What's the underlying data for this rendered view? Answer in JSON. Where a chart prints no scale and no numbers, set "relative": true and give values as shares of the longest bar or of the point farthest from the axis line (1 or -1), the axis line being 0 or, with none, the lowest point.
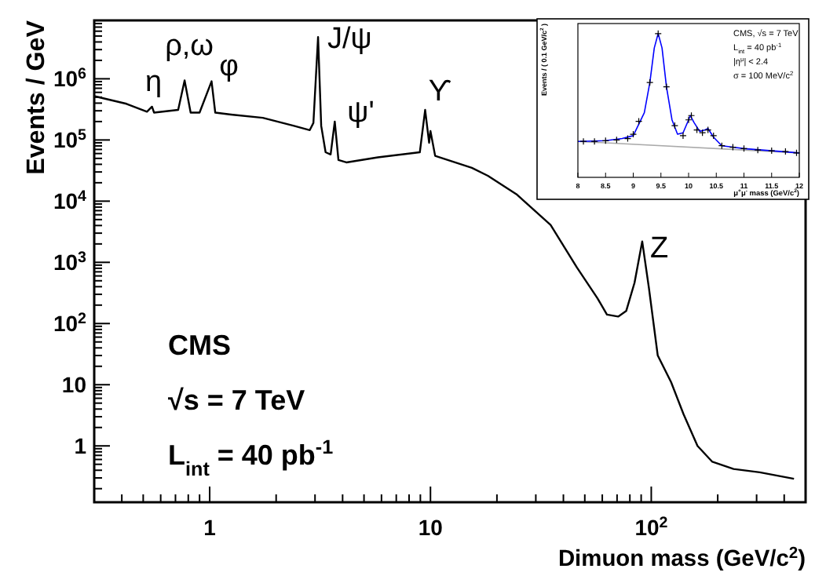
{
  "chart_data": [
    {
      "type": "line",
      "xlabel": "Dimuon mass (GeV/c$^{2}$)",
      "ylabel": "Events / GeV",
      "log": "xy",
      "xlim": [
        0.3,
        500
      ],
      "ylim": [
        0.12,
        9000000
      ],
      "xticks": [
        {
          "value": 0.4,
          "label": null
        },
        {
          "value": 0.5,
          "label": null
        },
        {
          "value": 0.6,
          "label": null
        },
        {
          "value": 0.7,
          "label": null
        },
        {
          "value": 0.8,
          "label": null
        },
        {
          "value": 0.9,
          "label": null
        },
        1,
        {
          "value": 2,
          "label": null
        },
        {
          "value": 3,
          "label": null
        },
        {
          "value": 4,
          "label": null
        },
        {
          "value": 5,
          "label": null
        },
        {
          "value": 6,
          "label": null
        },
        {
          "value": 7,
          "label": null
        },
        {
          "value": 8,
          "label": null
        },
        {
          "value": 9,
          "label": null
        },
        10,
        {
          "value": 20,
          "label": null
        },
        {
          "value": 30,
          "label": null
        },
        {
          "value": 40,
          "label": null
        },
        {
          "value": 50,
          "label": null
        },
        {
          "value": 60,
          "label": null
        },
        {
          "value": 70,
          "label": null
        },
        {
          "value": 80,
          "label": null
        },
        {
          "value": 90,
          "label": null
        },
        {
          "value": 100,
          "label": "10$^{2}$"
        },
        {
          "value": 200,
          "label": null
        },
        {
          "value": 300,
          "label": null
        },
        {
          "value": 400,
          "label": null
        },
        {
          "value": 500,
          "label": null
        }
      ],
      "yticks": [
        {
          "value": 0.2,
          "label": null
        },
        {
          "value": 0.3,
          "label": null
        },
        {
          "value": 0.4,
          "label": null
        },
        {
          "value": 0.5,
          "label": null
        },
        {
          "value": 0.6,
          "label": null
        },
        {
          "value": 0.7,
          "label": null
        },
        {
          "value": 0.8,
          "label": null
        },
        {
          "value": 0.9,
          "label": null
        },
        1,
        {
          "value": 2,
          "label": null
        },
        {
          "value": 3,
          "label": null
        },
        {
          "value": 4,
          "label": null
        },
        {
          "value": 5,
          "label": null
        },
        {
          "value": 6,
          "label": null
        },
        {
          "value": 7,
          "label": null
        },
        {
          "value": 8,
          "label": null
        },
        {
          "value": 9,
          "label": null
        },
        10,
        {
          "value": 20,
          "label": null
        },
        {
          "value": 30,
          "label": null
        },
        {
          "value": 40,
          "label": null
        },
        {
          "value": 50,
          "label": null
        },
        {
          "value": 60,
          "label": null
        },
        {
          "value": 70,
          "label": null
        },
        {
          "value": 80,
          "label": null
        },
        {
          "value": 90,
          "label": null
        },
        {
          "value": 100,
          "label": "10$^{2}$"
        },
        {
          "value": 200,
          "label": null
        },
        {
          "value": 300,
          "label": null
        },
        {
          "value": 400,
          "label": null
        },
        {
          "value": 500,
          "label": null
        },
        {
          "value": 600,
          "label": null
        },
        {
          "value": 700,
          "label": null
        },
        {
          "value": 800,
          "label": null
        },
        {
          "value": 900,
          "label": null
        },
        {
          "value": 1000,
          "label": "10$^{3}$"
        },
        {
          "value": 2000,
          "label": null
        },
        {
          "value": 3000,
          "label": null
        },
        {
          "value": 4000,
          "label": null
        },
        {
          "value": 5000,
          "label": null
        },
        {
          "value": 6000,
          "label": null
        },
        {
          "value": 7000,
          "label": null
        },
        {
          "value": 8000,
          "label": null
        },
        {
          "value": 9000,
          "label": null
        },
        {
          "value": 10000,
          "label": "10$^{4}$"
        },
        {
          "value": 20000,
          "label": null
        },
        {
          "value": 30000,
          "label": null
        },
        {
          "value": 40000,
          "label": null
        },
        {
          "value": 50000,
          "label": null
        },
        {
          "value": 60000,
          "label": null
        },
        {
          "value": 70000,
          "label": null
        },
        {
          "value": 80000,
          "label": null
        },
        {
          "value": 90000,
          "label": null
        },
        {
          "value": 100000,
          "label": "10$^{5}$"
        },
        {
          "value": 200000,
          "label": null
        },
        {
          "value": 300000,
          "label": null
        },
        {
          "value": 400000,
          "label": null
        },
        {
          "value": 500000,
          "label": null
        },
        {
          "value": 600000,
          "label": null
        },
        {
          "value": 700000,
          "label": null
        },
        {
          "value": 800000,
          "label": null
        },
        {
          "value": 900000,
          "label": null
        },
        {
          "value": 1000000,
          "label": "10$^{6}$"
        },
        {
          "value": 2000000,
          "label": null
        },
        {
          "value": 3000000,
          "label": null
        },
        {
          "value": 4000000,
          "label": null
        },
        {
          "value": 5000000,
          "label": null
        },
        {
          "value": 6000000,
          "label": null
        },
        {
          "value": 7000000,
          "label": null
        },
        {
          "value": 8000000,
          "label": null
        },
        {
          "value": 9000000,
          "label": null
        }
      ],
      "series": [
        {
          "color": "#000000",
          "x": [
            0.3,
            0.42,
            0.52,
            0.548,
            0.56,
            0.72,
            0.77,
            0.82,
            0.9,
            1.02,
            1.06,
            1.25,
            1.74,
            2.41,
            2.84,
            2.95,
            3.097,
            3.2,
            3.35,
            3.53,
            3.686,
            3.83,
            4.16,
            5.78,
            8.95,
            9.46,
            9.86,
            10.0,
            10.5,
            15.4,
            18.2,
            24.5,
            35,
            46,
            57,
            63,
            70.8,
            77,
            84,
            91,
            97.6,
            107,
            123,
            140,
            162,
            189,
            236,
            310,
            443
          ],
          "values": [
            520000,
            390000,
            290000,
            350000,
            280000,
            310000,
            940000,
            280000,
            280000,
            910000,
            280000,
            260000,
            230000,
            170000,
            145000,
            190000,
            4800000,
            170000,
            63000,
            58000,
            200000,
            47000,
            43000,
            52000,
            63000,
            310000,
            90000,
            140000,
            55000,
            35000,
            26000,
            13000,
            4100,
            830,
            260,
            140,
            130,
            160,
            465,
            2200,
            380,
            30,
            11,
            3.3,
            1.0,
            0.55,
            0.42,
            0.37,
            0.29
          ]
        }
      ],
      "annotations": [
        {
          "text": "η",
          "x": 0.548,
          "y": 350000
        },
        {
          "text": "ρ,ω",
          "x": 0.77,
          "y": 940000
        },
        {
          "text": "φ",
          "x": 1.02,
          "y": 910000
        },
        {
          "text": "J/ψ",
          "x": 3.097,
          "y": 4800000
        },
        {
          "text": "ψ'",
          "x": 3.686,
          "y": 200000
        },
        {
          "text": "ϒ",
          "x": 9.46,
          "y": 310000
        },
        {
          "text": "Z",
          "x": 91,
          "y": 2200
        },
        "CMS",
        "√s = 7 TeV",
        "L$_{int}$ = 40 pb$^{-1}$"
      ]
    },
    {
      "type": "line",
      "relative": true,
      "xlabel": "μ$^{+}$μ$^{-}$ mass (GeV/c$^{2}$)",
      "ylabel": "Events / ( 0.1 GeV/c$^{2}$ )",
      "xlim": [
        8,
        12
      ],
      "xticks": [
        8,
        8.5,
        9,
        9.5,
        10,
        10.5,
        11,
        11.5,
        12
      ],
      "series": [
        {
          "color": "#aaaaaa",
          "x": [
            8,
            12
          ],
          "values": [
            0.25,
            0.17
          ]
        },
        {
          "color": "#0000ff",
          "x": [
            8,
            8.5,
            8.8,
            9.0,
            9.2,
            9.3,
            9.38,
            9.45,
            9.52,
            9.6,
            9.7,
            9.8,
            9.9,
            10.0,
            10.03,
            10.1,
            10.2,
            10.3,
            10.35,
            10.45,
            10.6,
            10.8,
            11,
            11.5,
            12
          ],
          "values": [
            0.25,
            0.255,
            0.27,
            0.29,
            0.45,
            0.66,
            0.9,
            1.0,
            0.9,
            0.63,
            0.4,
            0.3,
            0.31,
            0.4,
            0.43,
            0.38,
            0.32,
            0.33,
            0.34,
            0.28,
            0.22,
            0.21,
            0.2,
            0.185,
            0.17
          ]
        },
        {
          "type": "scatter",
          "marker": "cross",
          "color": "#000000",
          "x": [
            8.1,
            8.3,
            8.5,
            8.7,
            8.9,
            9.0,
            9.1,
            9.3,
            9.45,
            9.6,
            9.75,
            9.9,
            10.0,
            10.05,
            10.15,
            10.25,
            10.35,
            10.45,
            10.6,
            10.8,
            11.0,
            11.25,
            11.5,
            11.75,
            11.95
          ],
          "values": [
            0.25,
            0.25,
            0.255,
            0.26,
            0.27,
            0.3,
            0.39,
            0.66,
            1.0,
            0.63,
            0.36,
            0.29,
            0.4,
            0.43,
            0.33,
            0.31,
            0.33,
            0.29,
            0.22,
            0.21,
            0.2,
            0.19,
            0.185,
            0.18,
            0.17
          ]
        }
      ],
      "annotations": [
        "CMS, √s = 7 TeV",
        "L$_{int}$ = 40 pb$^{-1}$",
        "|η$^{μ}$| < 2.4",
        "σ = 100 MeV/c$^{2}$"
      ]
    }
  ]
}
